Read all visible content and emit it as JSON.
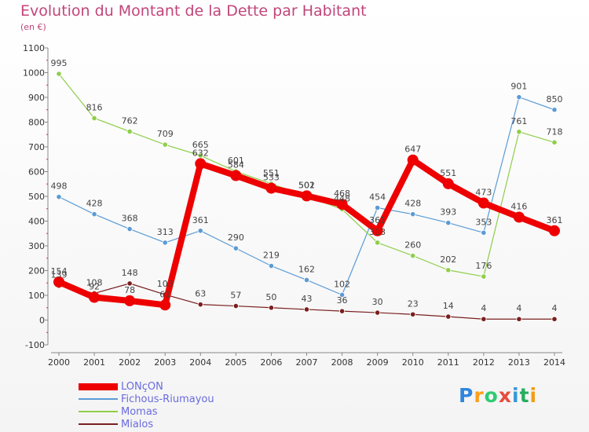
{
  "title": "Evolution du Montant de la Dette par Habitant",
  "unit": "(en €)",
  "logo": {
    "text": "Proxiti",
    "letter_colors": [
      "#2e86de",
      "#ff9f1a",
      "#2ecc71",
      "#e74c3c",
      "#3498db",
      "#27ae60",
      "#f39c12"
    ]
  },
  "chart_data": {
    "type": "line",
    "title": "Evolution du Montant de la Dette par Habitant",
    "ylabel": "(en €)",
    "xlabel": "",
    "x": [
      "2000",
      "2001",
      "2002",
      "2003",
      "2004",
      "2005",
      "2006",
      "2007",
      "2008",
      "2009",
      "2010",
      "2011",
      "2012",
      "2013",
      "2014"
    ],
    "yticks": [
      "-100",
      "0",
      "100",
      "200",
      "300",
      "400",
      "500",
      "600",
      "700",
      "800",
      "900",
      "1000",
      "1100"
    ],
    "ylim": [
      -100,
      1100
    ],
    "grid": false,
    "legend_position": "bottom-left",
    "series": [
      {
        "name": "LONçON",
        "color": "#ee0000",
        "emphasis": true,
        "values": [
          154,
          92,
          78,
          61,
          632,
          584,
          533,
          502,
          468,
          361,
          647,
          551,
          473,
          416,
          361
        ],
        "labels": [
          "154",
          "92",
          "78",
          "61",
          "632",
          "584",
          "533",
          "502",
          "468",
          "361",
          "647",
          "551",
          "473",
          "416",
          "361"
        ]
      },
      {
        "name": "Fichous-Riumayou",
        "color": "#5b9bd5",
        "values": [
          498,
          428,
          368,
          313,
          361,
          290,
          219,
          162,
          102,
          454,
          428,
          393,
          353,
          901,
          850
        ],
        "labels": [
          "498",
          "428",
          "368",
          "313",
          "361",
          "290",
          "219",
          "162",
          "102",
          "454",
          "428",
          "393",
          "353",
          "901",
          "850"
        ]
      },
      {
        "name": "Momas",
        "color": "#8fce4a",
        "values": [
          995,
          816,
          762,
          709,
          665,
          601,
          551,
          501,
          448,
          313,
          260,
          202,
          176,
          761,
          718
        ],
        "labels": [
          "995",
          "816",
          "762",
          "709",
          "665",
          "601",
          "551",
          "501",
          "448",
          "313",
          "260",
          "202",
          "176",
          "761",
          "718"
        ]
      },
      {
        "name": "Mialos",
        "color": "#7b1f1f",
        "values": [
          139,
          108,
          148,
          103,
          63,
          57,
          50,
          43,
          36,
          30,
          23,
          14,
          4,
          4,
          4
        ],
        "labels": [
          "139",
          "108",
          "148",
          "103",
          "63",
          "57",
          "50",
          "43",
          "36",
          "30",
          "23",
          "14",
          "4",
          "4",
          "4"
        ]
      }
    ]
  }
}
